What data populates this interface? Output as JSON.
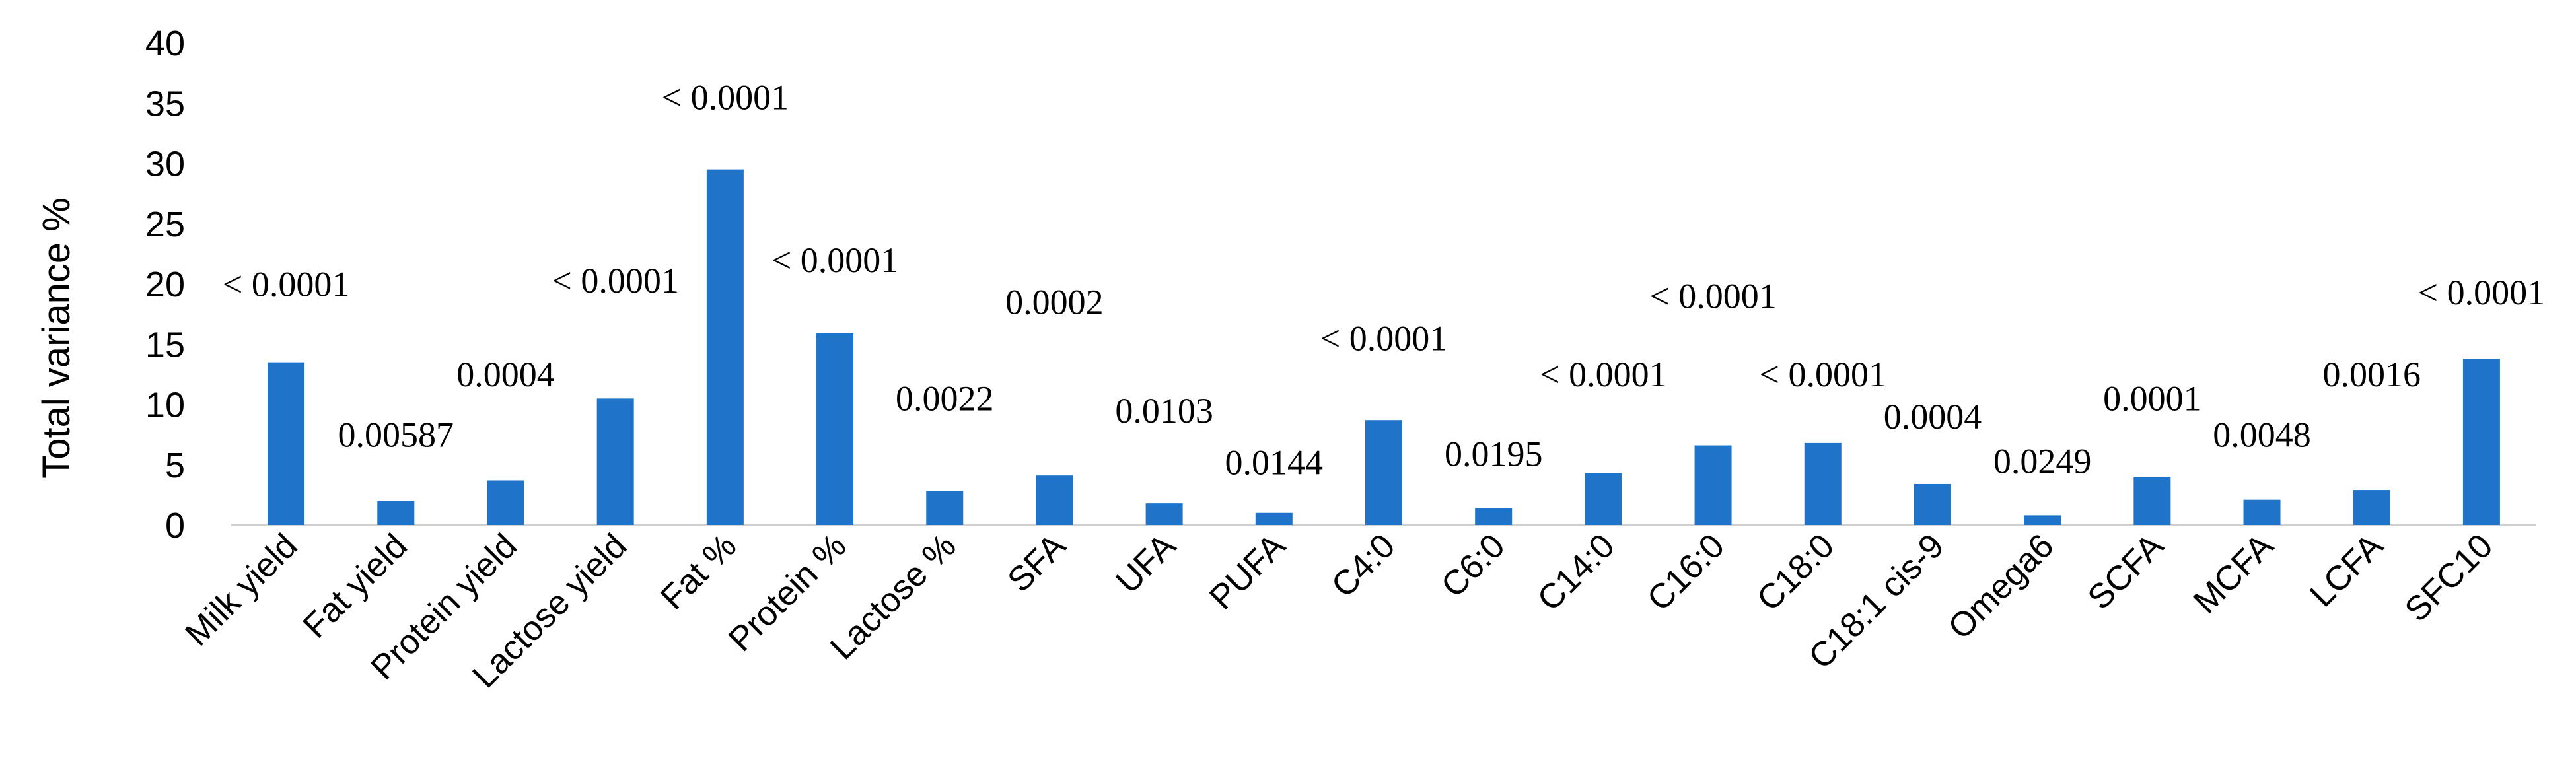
{
  "chart_data": {
    "type": "bar",
    "ylabel": "Total variance %",
    "xlabel": "",
    "ylim": [
      0,
      40
    ],
    "yticks": [
      0,
      5,
      10,
      15,
      20,
      25,
      30,
      35,
      40
    ],
    "grid": false,
    "legend": "none",
    "bar_color": "#1f73c8",
    "categories": [
      "Milk yield",
      "Fat yield",
      "Protein yield",
      "Lactose yield",
      "Fat %",
      "Protein %",
      "Lactose %",
      "SFA",
      "UFA",
      "PUFA",
      "C4:0",
      "C6:0",
      "C14:0",
      "C16:0",
      "C18:0",
      "C18:1 cis-9",
      "Omega6",
      "SCFA",
      "MCFA",
      "LCFA",
      "SFC10"
    ],
    "values": [
      13.5,
      2.0,
      3.7,
      10.5,
      29.5,
      15.9,
      2.8,
      4.1,
      1.8,
      1.0,
      8.7,
      1.4,
      4.3,
      6.6,
      6.8,
      3.4,
      0.8,
      4.0,
      2.1,
      2.9,
      13.8
    ],
    "p_values": [
      "< 0.0001",
      "0.00587",
      "0.0004",
      "< 0.0001",
      "< 0.0001",
      "< 0.0001",
      "0.0022",
      "0.0002",
      "0.0103",
      "0.0144",
      "< 0.0001",
      "0.0195",
      "< 0.0001",
      "< 0.0001",
      "< 0.0001",
      "0.0004",
      "0.0249",
      "0.0001",
      "0.0048",
      "0.0016",
      "< 0.0001"
    ],
    "p_label_heights": [
      19,
      6.5,
      11.5,
      19.3,
      34.5,
      21,
      9.5,
      17.5,
      8.5,
      4.2,
      14.5,
      4.9,
      11.5,
      18,
      11.5,
      8,
      4.3,
      9.5,
      6.5,
      11.5,
      18.3
    ]
  }
}
